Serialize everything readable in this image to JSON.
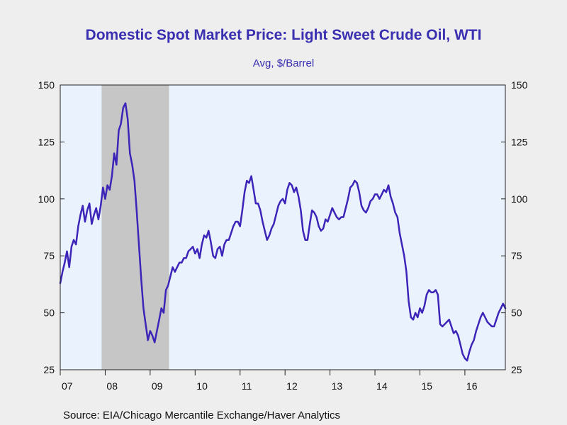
{
  "chart_data": {
    "type": "line",
    "title": "Domestic Spot Market Price: Light Sweet Crude Oil, WTI",
    "subtitle": "Avg, $/Barrel",
    "source": "Source:  EIA/Chicago Mercantile Exchange/Haver Analytics",
    "ylim": [
      25,
      150
    ],
    "yticks": [
      25,
      50,
      75,
      100,
      125,
      150
    ],
    "ytick_labels": [
      "25",
      "50",
      "75",
      "100",
      "125",
      "150"
    ],
    "xlim": [
      2007.0,
      2016.9
    ],
    "xticks": [
      {
        "value": 2007.0,
        "label": "07"
      },
      {
        "value": 2008.0,
        "label": "08"
      },
      {
        "value": 2009.0,
        "label": "09"
      },
      {
        "value": 2010.0,
        "label": "10"
      },
      {
        "value": 2011.0,
        "label": "11"
      },
      {
        "value": 2012.0,
        "label": "12"
      },
      {
        "value": 2013.0,
        "label": "13"
      },
      {
        "value": 2014.0,
        "label": "14"
      },
      {
        "value": 2015.0,
        "label": "15"
      },
      {
        "value": 2016.0,
        "label": "16"
      }
    ],
    "grid": false,
    "recession_shading": [
      {
        "start": 2007.92,
        "end": 2009.42
      }
    ],
    "colors": {
      "line": "#3d24b8",
      "plot_background": "#eaf3fd",
      "recession": "#c6c6c6",
      "title": "#3a2fb0",
      "page_background": "#eeeeee"
    },
    "series": [
      {
        "x": [
          2007.0,
          2007.05,
          2007.1,
          2007.15,
          2007.2,
          2007.25,
          2007.3,
          2007.35,
          2007.4,
          2007.45,
          2007.5,
          2007.55,
          2007.6,
          2007.65,
          2007.7,
          2007.75,
          2007.8,
          2007.85,
          2007.9,
          2007.95,
          2008.0,
          2008.05,
          2008.1,
          2008.15,
          2008.2,
          2008.25,
          2008.3,
          2008.35,
          2008.4,
          2008.45,
          2008.5,
          2008.55,
          2008.6,
          2008.65,
          2008.7,
          2008.75,
          2008.8,
          2008.85,
          2008.9,
          2008.95,
          2009.0,
          2009.05,
          2009.1,
          2009.15,
          2009.2,
          2009.25,
          2009.3,
          2009.35,
          2009.4,
          2009.45,
          2009.5,
          2009.55,
          2009.6,
          2009.65,
          2009.7,
          2009.75,
          2009.8,
          2009.85,
          2009.9,
          2009.95,
          2010.0,
          2010.05,
          2010.1,
          2010.15,
          2010.2,
          2010.25,
          2010.3,
          2010.35,
          2010.4,
          2010.45,
          2010.5,
          2010.55,
          2010.6,
          2010.65,
          2010.7,
          2010.75,
          2010.8,
          2010.85,
          2010.9,
          2010.95,
          2011.0,
          2011.05,
          2011.1,
          2011.15,
          2011.2,
          2011.25,
          2011.3,
          2011.35,
          2011.4,
          2011.45,
          2011.5,
          2011.55,
          2011.6,
          2011.65,
          2011.7,
          2011.75,
          2011.8,
          2011.85,
          2011.9,
          2011.95,
          2012.0,
          2012.05,
          2012.1,
          2012.15,
          2012.2,
          2012.25,
          2012.3,
          2012.35,
          2012.4,
          2012.45,
          2012.5,
          2012.55,
          2012.6,
          2012.65,
          2012.7,
          2012.75,
          2012.8,
          2012.85,
          2012.9,
          2012.95,
          2013.0,
          2013.05,
          2013.1,
          2013.15,
          2013.2,
          2013.25,
          2013.3,
          2013.35,
          2013.4,
          2013.45,
          2013.5,
          2013.55,
          2013.6,
          2013.65,
          2013.7,
          2013.75,
          2013.8,
          2013.85,
          2013.9,
          2013.95,
          2014.0,
          2014.05,
          2014.1,
          2014.15,
          2014.2,
          2014.25,
          2014.3,
          2014.35,
          2014.4,
          2014.45,
          2014.5,
          2014.55,
          2014.6,
          2014.65,
          2014.7,
          2014.75,
          2014.8,
          2014.85,
          2014.9,
          2014.95,
          2015.0,
          2015.05,
          2015.1,
          2015.15,
          2015.2,
          2015.25,
          2015.3,
          2015.35,
          2015.4,
          2015.45,
          2015.5,
          2015.55,
          2015.6,
          2015.65,
          2015.7,
          2015.75,
          2015.8,
          2015.85,
          2015.9,
          2015.95,
          2016.0,
          2016.05,
          2016.1,
          2016.15,
          2016.2,
          2016.25,
          2016.3,
          2016.35,
          2016.4,
          2016.45,
          2016.5,
          2016.55,
          2016.6,
          2016.65,
          2016.7,
          2016.75,
          2016.8,
          2016.85,
          2016.9
        ],
        "values": [
          63,
          68,
          72,
          77,
          70,
          79,
          82,
          80,
          88,
          93,
          97,
          90,
          95,
          98,
          89,
          93,
          96,
          91,
          97,
          105,
          100,
          106,
          104,
          110,
          120,
          115,
          130,
          133,
          140,
          142,
          135,
          120,
          115,
          108,
          95,
          80,
          65,
          52,
          45,
          38,
          42,
          40,
          37,
          42,
          47,
          52,
          50,
          60,
          62,
          66,
          70,
          68,
          70,
          72,
          72,
          74,
          74,
          77,
          78,
          79,
          76,
          78,
          74,
          80,
          84,
          83,
          86,
          81,
          75,
          74,
          78,
          79,
          75,
          80,
          82,
          82,
          85,
          88,
          90,
          90,
          88,
          95,
          103,
          108,
          107,
          110,
          104,
          98,
          98,
          95,
          90,
          86,
          82,
          84,
          87,
          89,
          93,
          97,
          99,
          100,
          98,
          104,
          107,
          106,
          103,
          105,
          101,
          95,
          86,
          82,
          82,
          89,
          95,
          94,
          92,
          88,
          86,
          87,
          91,
          90,
          93,
          96,
          94,
          92,
          91,
          92,
          92,
          96,
          100,
          105,
          106,
          108,
          107,
          103,
          97,
          95,
          94,
          96,
          99,
          100,
          102,
          102,
          100,
          102,
          104,
          103,
          106,
          101,
          98,
          94,
          92,
          85,
          80,
          75,
          68,
          55,
          48,
          47,
          50,
          48,
          52,
          50,
          53,
          58,
          60,
          59,
          59,
          60,
          58,
          45,
          44,
          45,
          46,
          47,
          44,
          41,
          42,
          40,
          36,
          32,
          30,
          29,
          33,
          36,
          38,
          42,
          45,
          48,
          50,
          48,
          46,
          45,
          44,
          44,
          47,
          50,
          52,
          54,
          52
        ]
      }
    ]
  }
}
